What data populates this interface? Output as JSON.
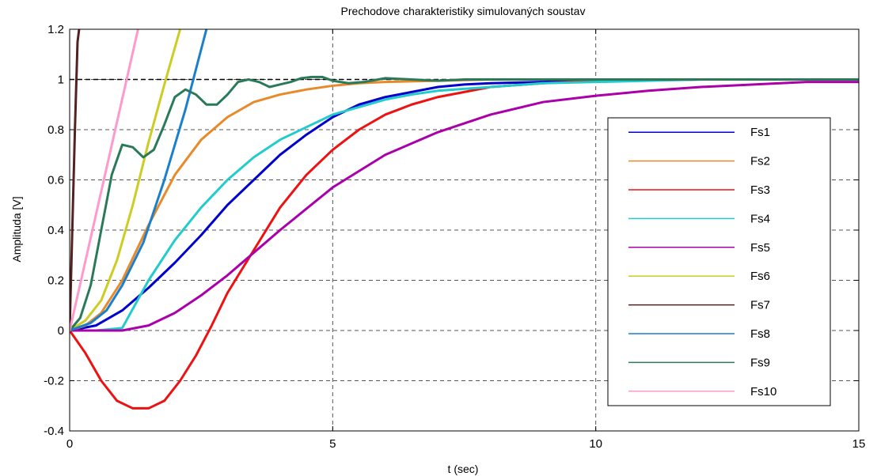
{
  "chart_data": {
    "type": "line",
    "title": "Prechodove charakteristiky simulovaných soustav",
    "xlabel": "t (sec)",
    "ylabel": "Amplituda [V]",
    "xlim": [
      0,
      15
    ],
    "ylim": [
      -0.4,
      1.2
    ],
    "xticks": [
      0,
      5,
      10,
      15
    ],
    "xtick_labels": [
      "0",
      "5",
      "10",
      "15"
    ],
    "yticks": [
      -0.4,
      -0.2,
      0,
      0.2,
      0.4,
      0.6,
      0.8,
      1,
      1.2
    ],
    "ytick_labels": [
      "-0.4",
      "-0.2",
      "0",
      "0.2",
      "0.4",
      "0.6",
      "0.8",
      "1",
      "1.2"
    ],
    "grid": true,
    "legend_position": "right",
    "reference_line": {
      "y": 1,
      "style": "dashed",
      "color": "#000000"
    },
    "series": [
      {
        "name": "Fs1",
        "color": "#0000cc",
        "x": [
          0,
          0.5,
          1,
          1.5,
          2,
          2.5,
          3,
          3.5,
          4,
          4.5,
          5,
          5.5,
          6,
          6.5,
          7,
          7.5,
          8,
          9,
          10,
          12,
          15
        ],
        "y": [
          0,
          0.02,
          0.08,
          0.17,
          0.27,
          0.38,
          0.5,
          0.6,
          0.7,
          0.78,
          0.85,
          0.9,
          0.93,
          0.95,
          0.97,
          0.98,
          0.985,
          0.99,
          0.995,
          1,
          1
        ]
      },
      {
        "name": "Fs2",
        "color": "#e8892a",
        "x": [
          0,
          0.3,
          0.6,
          1,
          1.5,
          2,
          2.5,
          3,
          3.5,
          4,
          4.5,
          5,
          5.5,
          6,
          7,
          8,
          10,
          15
        ],
        "y": [
          0,
          0.02,
          0.07,
          0.2,
          0.42,
          0.62,
          0.76,
          0.85,
          0.91,
          0.94,
          0.96,
          0.975,
          0.985,
          0.99,
          0.995,
          1,
          1,
          1
        ]
      },
      {
        "name": "Fs3",
        "color": "#ee1111",
        "x": [
          0,
          0.3,
          0.6,
          0.9,
          1.2,
          1.5,
          1.8,
          2.1,
          2.4,
          2.7,
          3,
          3.5,
          4,
          4.5,
          5,
          5.5,
          6,
          6.5,
          7,
          7.5,
          8,
          9,
          10,
          12,
          15
        ],
        "y": [
          0,
          -0.09,
          -0.2,
          -0.28,
          -0.31,
          -0.31,
          -0.28,
          -0.2,
          -0.1,
          0.02,
          0.15,
          0.32,
          0.49,
          0.62,
          0.72,
          0.8,
          0.86,
          0.9,
          0.93,
          0.95,
          0.97,
          0.985,
          0.995,
          1,
          1
        ]
      },
      {
        "name": "Fs4",
        "color": "#22cccc",
        "x": [
          0,
          0.5,
          1,
          1.5,
          2,
          2.5,
          3,
          3.5,
          4,
          4.5,
          5,
          5.5,
          6,
          6.5,
          7,
          8,
          9,
          10,
          12,
          15
        ],
        "y": [
          0,
          0,
          0.01,
          0.2,
          0.36,
          0.49,
          0.6,
          0.69,
          0.76,
          0.81,
          0.86,
          0.89,
          0.92,
          0.94,
          0.955,
          0.97,
          0.985,
          0.99,
          1,
          1
        ]
      },
      {
        "name": "Fs5",
        "color": "#aa00aa",
        "x": [
          0,
          0.5,
          1,
          1.5,
          2,
          2.5,
          3,
          3.5,
          4,
          5,
          6,
          7,
          8,
          9,
          10,
          11,
          12,
          13,
          14,
          15
        ],
        "y": [
          0,
          0,
          0,
          0.02,
          0.07,
          0.14,
          0.22,
          0.31,
          0.4,
          0.57,
          0.7,
          0.79,
          0.86,
          0.91,
          0.935,
          0.955,
          0.97,
          0.98,
          0.99,
          0.99
        ]
      },
      {
        "name": "Fs6",
        "color": "#cccc22",
        "x": [
          0,
          0.3,
          0.6,
          0.9,
          1.2,
          1.5,
          1.8,
          2.1
        ],
        "y": [
          0,
          0.04,
          0.12,
          0.28,
          0.5,
          0.75,
          0.98,
          1.2
        ]
      },
      {
        "name": "Fs7",
        "color": "#552222",
        "x": [
          0,
          0.05,
          0.1,
          0.15,
          0.18
        ],
        "y": [
          0,
          0.4,
          0.8,
          1.15,
          1.2
        ]
      },
      {
        "name": "Fs8",
        "color": "#1a7fcc",
        "x": [
          0,
          0.4,
          0.7,
          1,
          1.4,
          1.8,
          2.2,
          2.6
        ],
        "y": [
          0,
          0.03,
          0.08,
          0.18,
          0.35,
          0.6,
          0.88,
          1.2
        ]
      },
      {
        "name": "Fs9",
        "color": "#2a7a5a",
        "x": [
          0,
          0.2,
          0.4,
          0.6,
          0.8,
          1,
          1.2,
          1.4,
          1.6,
          1.8,
          2,
          2.2,
          2.4,
          2.6,
          2.8,
          3,
          3.2,
          3.4,
          3.6,
          3.8,
          4,
          4.2,
          4.4,
          4.6,
          4.8,
          5,
          5.3,
          5.6,
          6,
          6.5,
          7,
          7.5,
          8,
          9,
          10,
          12,
          15
        ],
        "y": [
          0,
          0.05,
          0.18,
          0.4,
          0.62,
          0.74,
          0.73,
          0.69,
          0.72,
          0.82,
          0.93,
          0.96,
          0.94,
          0.9,
          0.9,
          0.94,
          0.99,
          1.0,
          0.99,
          0.97,
          0.98,
          0.99,
          1.005,
          1.01,
          1.01,
          0.995,
          0.985,
          0.99,
          1.005,
          1.0,
          0.995,
          1.0,
          1.0,
          1.0,
          1.0,
          1.0,
          1.0
        ]
      },
      {
        "name": "Fs10",
        "color": "#ff99cc",
        "x": [
          0,
          1.3
        ],
        "y": [
          0,
          1.2
        ]
      }
    ]
  }
}
